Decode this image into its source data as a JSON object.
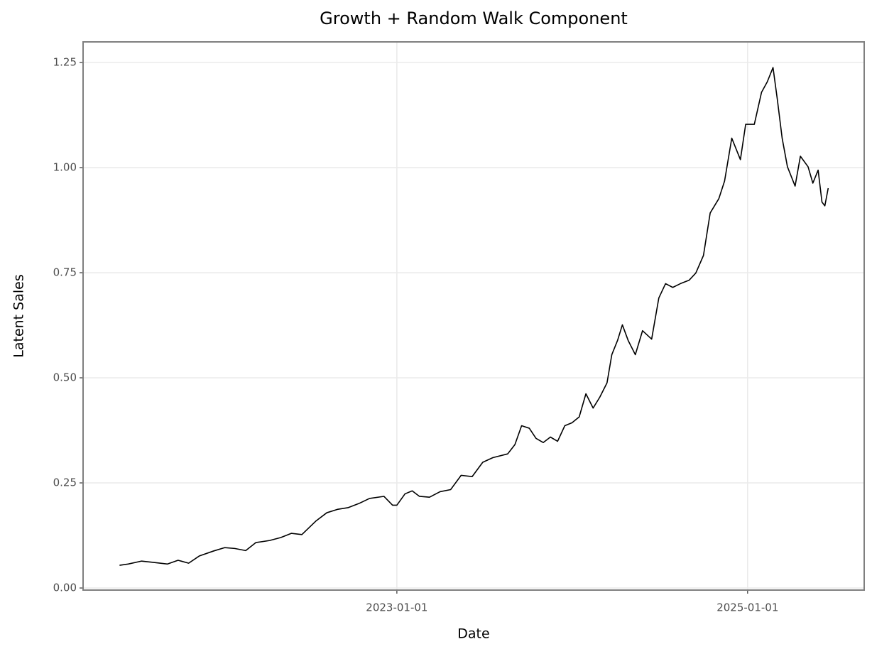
{
  "chart_data": {
    "type": "line",
    "title": "Growth + Random Walk Component",
    "xlabel": "Date",
    "ylabel": "Latent Sales",
    "x": [
      "2021-06-02",
      "2021-06-20",
      "2021-07-18",
      "2021-08-11",
      "2021-09-10",
      "2021-10-02",
      "2021-10-24",
      "2021-11-15",
      "2021-12-15",
      "2022-01-07",
      "2022-01-28",
      "2022-02-20",
      "2022-03-13",
      "2022-04-11",
      "2022-05-04",
      "2022-05-26",
      "2022-06-17",
      "2022-07-16",
      "2022-08-08",
      "2022-08-30",
      "2022-09-21",
      "2022-10-14",
      "2022-11-05",
      "2022-12-05",
      "2022-12-23",
      "2023-01-01",
      "2023-01-18",
      "2023-02-02",
      "2023-02-17",
      "2023-03-10",
      "2023-04-01",
      "2023-04-23",
      "2023-05-15",
      "2023-06-07",
      "2023-06-29",
      "2023-07-20",
      "2023-08-20",
      "2023-09-04",
      "2023-09-18",
      "2023-10-04",
      "2023-10-18",
      "2023-11-02",
      "2023-11-17",
      "2023-12-02",
      "2023-12-17",
      "2024-01-01",
      "2024-01-16",
      "2024-01-30",
      "2024-02-14",
      "2024-02-28",
      "2024-03-14",
      "2024-03-24",
      "2024-04-05",
      "2024-04-15",
      "2024-04-27",
      "2024-05-12",
      "2024-05-27",
      "2024-06-15",
      "2024-06-30",
      "2024-07-14",
      "2024-07-29",
      "2024-08-14",
      "2024-09-01",
      "2024-09-15",
      "2024-10-01",
      "2024-10-15",
      "2024-11-02",
      "2024-11-14",
      "2024-11-29",
      "2024-12-17",
      "2024-12-28",
      "2025-01-15",
      "2025-01-30",
      "2025-02-11",
      "2025-02-23",
      "2025-03-04",
      "2025-03-14",
      "2025-03-25",
      "2025-04-10",
      "2025-04-21",
      "2025-05-07",
      "2025-05-17",
      "2025-05-28",
      "2025-06-05",
      "2025-06-11",
      "2025-06-18"
    ],
    "values": [
      0.054,
      0.057,
      0.064,
      0.061,
      0.057,
      0.066,
      0.059,
      0.076,
      0.088,
      0.096,
      0.094,
      0.089,
      0.108,
      0.113,
      0.12,
      0.13,
      0.127,
      0.159,
      0.179,
      0.187,
      0.191,
      0.201,
      0.213,
      0.218,
      0.197,
      0.197,
      0.224,
      0.231,
      0.218,
      0.216,
      0.229,
      0.234,
      0.268,
      0.265,
      0.299,
      0.31,
      0.319,
      0.341,
      0.386,
      0.38,
      0.356,
      0.346,
      0.359,
      0.349,
      0.386,
      0.393,
      0.407,
      0.462,
      0.428,
      0.454,
      0.488,
      0.555,
      0.589,
      0.626,
      0.589,
      0.555,
      0.612,
      0.592,
      0.69,
      0.724,
      0.715,
      0.724,
      0.732,
      0.749,
      0.791,
      0.892,
      0.926,
      0.968,
      1.07,
      1.019,
      1.103,
      1.103,
      1.179,
      1.204,
      1.238,
      1.162,
      1.07,
      1.002,
      0.956,
      1.027,
      1.002,
      0.963,
      0.994,
      0.918,
      0.909,
      0.951
    ],
    "color": "#000000",
    "xlim": [
      "2021-03-18",
      "2025-09-01"
    ],
    "xticks": [
      "2023-01-01",
      "2025-01-01"
    ],
    "ylim": [
      -0.005,
      1.299
    ],
    "yticks": [
      {
        "value": 0,
        "label": "0.00"
      },
      0.25,
      {
        "value": 0.5,
        "label": "0.50"
      },
      0.75,
      {
        "value": 1,
        "label": "1.00"
      },
      1.25
    ],
    "grid": true
  }
}
